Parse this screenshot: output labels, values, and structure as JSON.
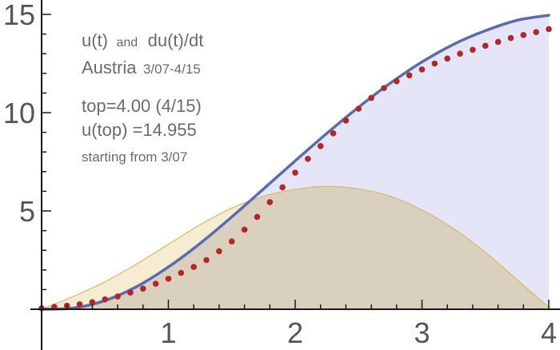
{
  "chart_data": {
    "type": "area",
    "title": "",
    "xlabel": "",
    "ylabel": "",
    "xlim": [
      0,
      4
    ],
    "ylim": [
      0,
      15
    ],
    "x_ticks": [
      "1",
      "2",
      "3",
      "4"
    ],
    "y_ticks": [
      "5",
      "10",
      "15"
    ],
    "annotations": {
      "line1_main": "u(t)",
      "line1_and": "and",
      "line1_rest": "du(t)/dt",
      "line2_main": "Austria",
      "line2_dates": "3/07-4/15",
      "line3": "top=4.00 (4/15)",
      "line4": "u(top) =14.955",
      "line5": "starting from 3/07"
    },
    "colors": {
      "u_line": "#5b6bb0",
      "u_fill": "#e4e5f6",
      "du_line": "#dcb766",
      "du_fill": "#f6ecd2",
      "overlap_fill": "#d9d1bd",
      "dots": "#b3262a",
      "axes": "#1a1a1a",
      "text": "#6a6a6a"
    },
    "series": [
      {
        "kind": "model-curve",
        "x": [
          0.0,
          0.25,
          0.5,
          0.75,
          1.0,
          1.25,
          1.5,
          1.75,
          2.0,
          2.25,
          2.5,
          2.75,
          3.0,
          3.25,
          3.5,
          3.75,
          4.0
        ],
        "values": [
          0.0,
          0.06,
          0.44,
          1.15,
          2.15,
          3.35,
          4.7,
          6.12,
          7.55,
          8.95,
          10.28,
          11.5,
          12.58,
          13.48,
          14.17,
          14.7,
          14.955
        ]
      },
      {
        "kind": "derivative-curve",
        "x": [
          0.0,
          0.25,
          0.5,
          0.75,
          1.0,
          1.25,
          1.5,
          1.75,
          2.0,
          2.25,
          2.5,
          2.75,
          3.0,
          3.25,
          3.5,
          3.75,
          4.0
        ],
        "values": [
          0.0,
          0.65,
          1.4,
          2.3,
          3.3,
          4.3,
          5.15,
          5.75,
          6.1,
          6.25,
          6.12,
          5.75,
          5.05,
          4.1,
          2.9,
          1.5,
          0.1
        ]
      },
      {
        "kind": "data-points",
        "x": [
          0.0,
          0.1,
          0.2,
          0.3,
          0.4,
          0.5,
          0.6,
          0.7,
          0.8,
          0.9,
          1.0,
          1.1,
          1.2,
          1.3,
          1.4,
          1.5,
          1.6,
          1.7,
          1.8,
          1.9,
          2.0,
          2.1,
          2.2,
          2.3,
          2.4,
          2.5,
          2.6,
          2.7,
          2.8,
          2.9,
          3.0,
          3.1,
          3.2,
          3.3,
          3.4,
          3.5,
          3.6,
          3.7,
          3.8,
          3.9,
          4.0
        ],
        "values": [
          0.05,
          0.12,
          0.18,
          0.25,
          0.36,
          0.5,
          0.65,
          0.85,
          1.05,
          1.3,
          1.55,
          1.85,
          2.15,
          2.5,
          2.95,
          3.45,
          4.05,
          4.7,
          5.45,
          6.2,
          6.95,
          7.65,
          8.3,
          8.95,
          9.6,
          10.2,
          10.75,
          11.25,
          11.6,
          11.9,
          12.2,
          12.5,
          12.75,
          13.0,
          13.2,
          13.4,
          13.6,
          13.8,
          13.95,
          14.1,
          14.25
        ]
      }
    ]
  }
}
